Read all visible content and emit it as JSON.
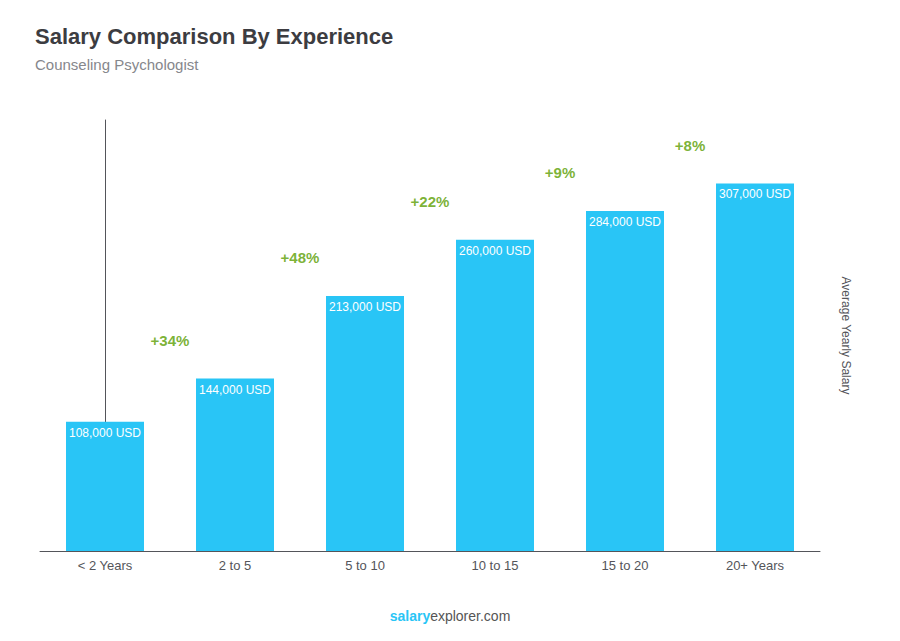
{
  "chart_data": {
    "type": "bar",
    "title": "Salary Comparison By Experience",
    "subtitle": "Counseling Psychologist",
    "ylabel": "Average Yearly Salary",
    "categories": [
      "< 2 Years",
      "2 to 5",
      "5 to 10",
      "10 to 15",
      "15 to 20",
      "20+ Years"
    ],
    "values": [
      108000,
      144000,
      213000,
      260000,
      284000,
      307000
    ],
    "value_labels": [
      "108,000 USD",
      "144,000 USD",
      "213,000 USD",
      "260,000 USD",
      "284,000 USD",
      "307,000 USD"
    ],
    "data_labels": true,
    "color": "#29C5F6",
    "annotations": [
      "+34%",
      "+48%",
      "+22%",
      "+9%",
      "+8%"
    ],
    "watermark": [
      "salary",
      "explorer.com"
    ],
    "ylim": [
      0,
      360000
    ],
    "tick_labels": "x",
    "grid": false
  }
}
